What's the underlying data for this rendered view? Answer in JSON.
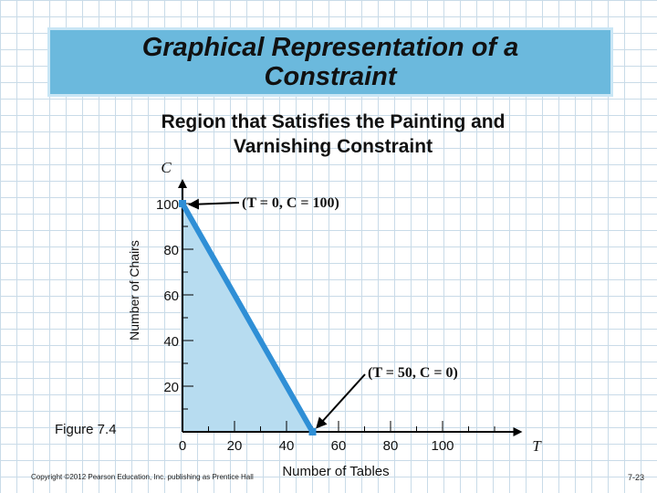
{
  "slide": {
    "title": "Graphical Representation of a Constraint",
    "subtitle": "Region that Satisfies the Painting and Varnishing Constraint",
    "figure_label": "Figure 7.4",
    "copyright": "Copyright ©2012 Pearson Education, Inc. publishing as Prentice Hall",
    "page_number": "7-23"
  },
  "colors": {
    "region_fill": "#b7dcf0",
    "constraint_line": "#2f8fd6",
    "title_bar": "#6bb9dd"
  },
  "chart_data": {
    "type": "area",
    "title": "Region that Satisfies the Painting and Varnishing Constraint",
    "xlabel": "Number of Tables",
    "ylabel": "Number of Chairs",
    "x_axis_symbol": "T",
    "y_axis_symbol": "C",
    "xlim": [
      0,
      130
    ],
    "ylim": [
      0,
      110
    ],
    "x_ticks": [
      0,
      20,
      40,
      60,
      80,
      100
    ],
    "y_ticks": [
      20,
      40,
      60,
      80,
      100
    ],
    "constraint_line": {
      "x": [
        0,
        50
      ],
      "y": [
        100,
        0
      ]
    },
    "feasible_region": [
      [
        0,
        0
      ],
      [
        0,
        100
      ],
      [
        50,
        0
      ]
    ],
    "annotations": [
      {
        "text": "(T = 0, C = 100)",
        "point": [
          0,
          100
        ]
      },
      {
        "text": "(T = 50, C = 0)",
        "point": [
          50,
          0
        ]
      }
    ],
    "grid": false
  }
}
